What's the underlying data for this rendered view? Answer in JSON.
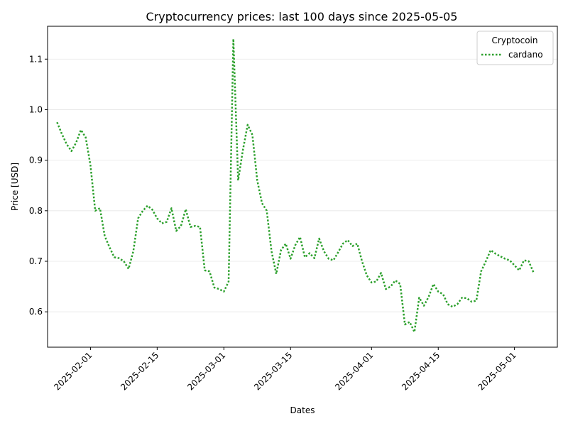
{
  "chart_data": {
    "type": "line",
    "title": "Cryptocurrency prices: last 100 days since 2025-05-05",
    "xlabel": "Dates",
    "ylabel": "Price [USD]",
    "xlim": [
      "2025-01-23",
      "2025-05-10"
    ],
    "ylim": [
      0.53,
      1.165
    ],
    "grid": "y",
    "legend": {
      "title": "Cryptocoin",
      "placement": "top-right"
    },
    "x_ticks": [
      "2025-02-01",
      "2025-02-15",
      "2025-03-01",
      "2025-03-15",
      "2025-04-01",
      "2025-04-15",
      "2025-05-01"
    ],
    "y_ticks": [
      0.6,
      0.7,
      0.8,
      0.9,
      1.0,
      1.1
    ],
    "y_tick_labels": [
      "0.6",
      "0.7",
      "0.8",
      "0.9",
      "1.0",
      "1.1"
    ],
    "series": [
      {
        "name": "cardano",
        "color": "#2ca02c",
        "line_style": "dotted",
        "x": [
          "2025-01-25",
          "2025-01-26",
          "2025-01-27",
          "2025-01-28",
          "2025-01-29",
          "2025-01-30",
          "2025-01-31",
          "2025-02-01",
          "2025-02-02",
          "2025-02-03",
          "2025-02-04",
          "2025-02-05",
          "2025-02-06",
          "2025-02-07",
          "2025-02-08",
          "2025-02-09",
          "2025-02-10",
          "2025-02-11",
          "2025-02-12",
          "2025-02-13",
          "2025-02-14",
          "2025-02-15",
          "2025-02-16",
          "2025-02-17",
          "2025-02-18",
          "2025-02-19",
          "2025-02-20",
          "2025-02-21",
          "2025-02-22",
          "2025-02-23",
          "2025-02-24",
          "2025-02-25",
          "2025-02-26",
          "2025-02-27",
          "2025-02-28",
          "2025-03-01",
          "2025-03-02",
          "2025-03-03",
          "2025-03-04",
          "2025-03-05",
          "2025-03-06",
          "2025-03-07",
          "2025-03-08",
          "2025-03-09",
          "2025-03-10",
          "2025-03-11",
          "2025-03-12",
          "2025-03-13",
          "2025-03-14",
          "2025-03-15",
          "2025-03-16",
          "2025-03-17",
          "2025-03-18",
          "2025-03-19",
          "2025-03-20",
          "2025-03-21",
          "2025-03-22",
          "2025-03-23",
          "2025-03-24",
          "2025-03-25",
          "2025-03-26",
          "2025-03-27",
          "2025-03-28",
          "2025-03-29",
          "2025-03-30",
          "2025-03-31",
          "2025-04-01",
          "2025-04-02",
          "2025-04-03",
          "2025-04-04",
          "2025-04-05",
          "2025-04-06",
          "2025-04-07",
          "2025-04-08",
          "2025-04-09",
          "2025-04-10",
          "2025-04-11",
          "2025-04-12",
          "2025-04-13",
          "2025-04-14",
          "2025-04-15",
          "2025-04-16",
          "2025-04-17",
          "2025-04-18",
          "2025-04-19",
          "2025-04-20",
          "2025-04-21",
          "2025-04-22",
          "2025-04-23",
          "2025-04-24",
          "2025-04-25",
          "2025-04-26",
          "2025-04-27",
          "2025-04-28",
          "2025-04-29",
          "2025-04-30",
          "2025-05-01",
          "2025-05-02",
          "2025-05-03",
          "2025-05-04",
          "2025-05-05"
        ],
        "values": [
          0.975,
          0.952,
          0.932,
          0.918,
          0.935,
          0.96,
          0.945,
          0.89,
          0.8,
          0.805,
          0.75,
          0.728,
          0.708,
          0.706,
          0.7,
          0.685,
          0.72,
          0.785,
          0.8,
          0.81,
          0.802,
          0.785,
          0.775,
          0.778,
          0.805,
          0.76,
          0.77,
          0.803,
          0.768,
          0.77,
          0.768,
          0.682,
          0.68,
          0.648,
          0.645,
          0.64,
          0.66,
          1.14,
          0.86,
          0.92,
          0.97,
          0.95,
          0.86,
          0.815,
          0.8,
          0.72,
          0.675,
          0.722,
          0.735,
          0.705,
          0.732,
          0.748,
          0.708,
          0.716,
          0.706,
          0.745,
          0.72,
          0.705,
          0.702,
          0.718,
          0.735,
          0.742,
          0.73,
          0.735,
          0.7,
          0.672,
          0.658,
          0.66,
          0.677,
          0.645,
          0.65,
          0.662,
          0.655,
          0.575,
          0.58,
          0.56,
          0.628,
          0.612,
          0.63,
          0.655,
          0.64,
          0.635,
          0.615,
          0.61,
          0.615,
          0.628,
          0.627,
          0.62,
          0.622,
          0.68,
          0.7,
          0.722,
          0.715,
          0.71,
          0.705,
          0.702,
          0.692,
          0.682,
          0.702,
          0.7,
          0.678
        ]
      }
    ]
  }
}
